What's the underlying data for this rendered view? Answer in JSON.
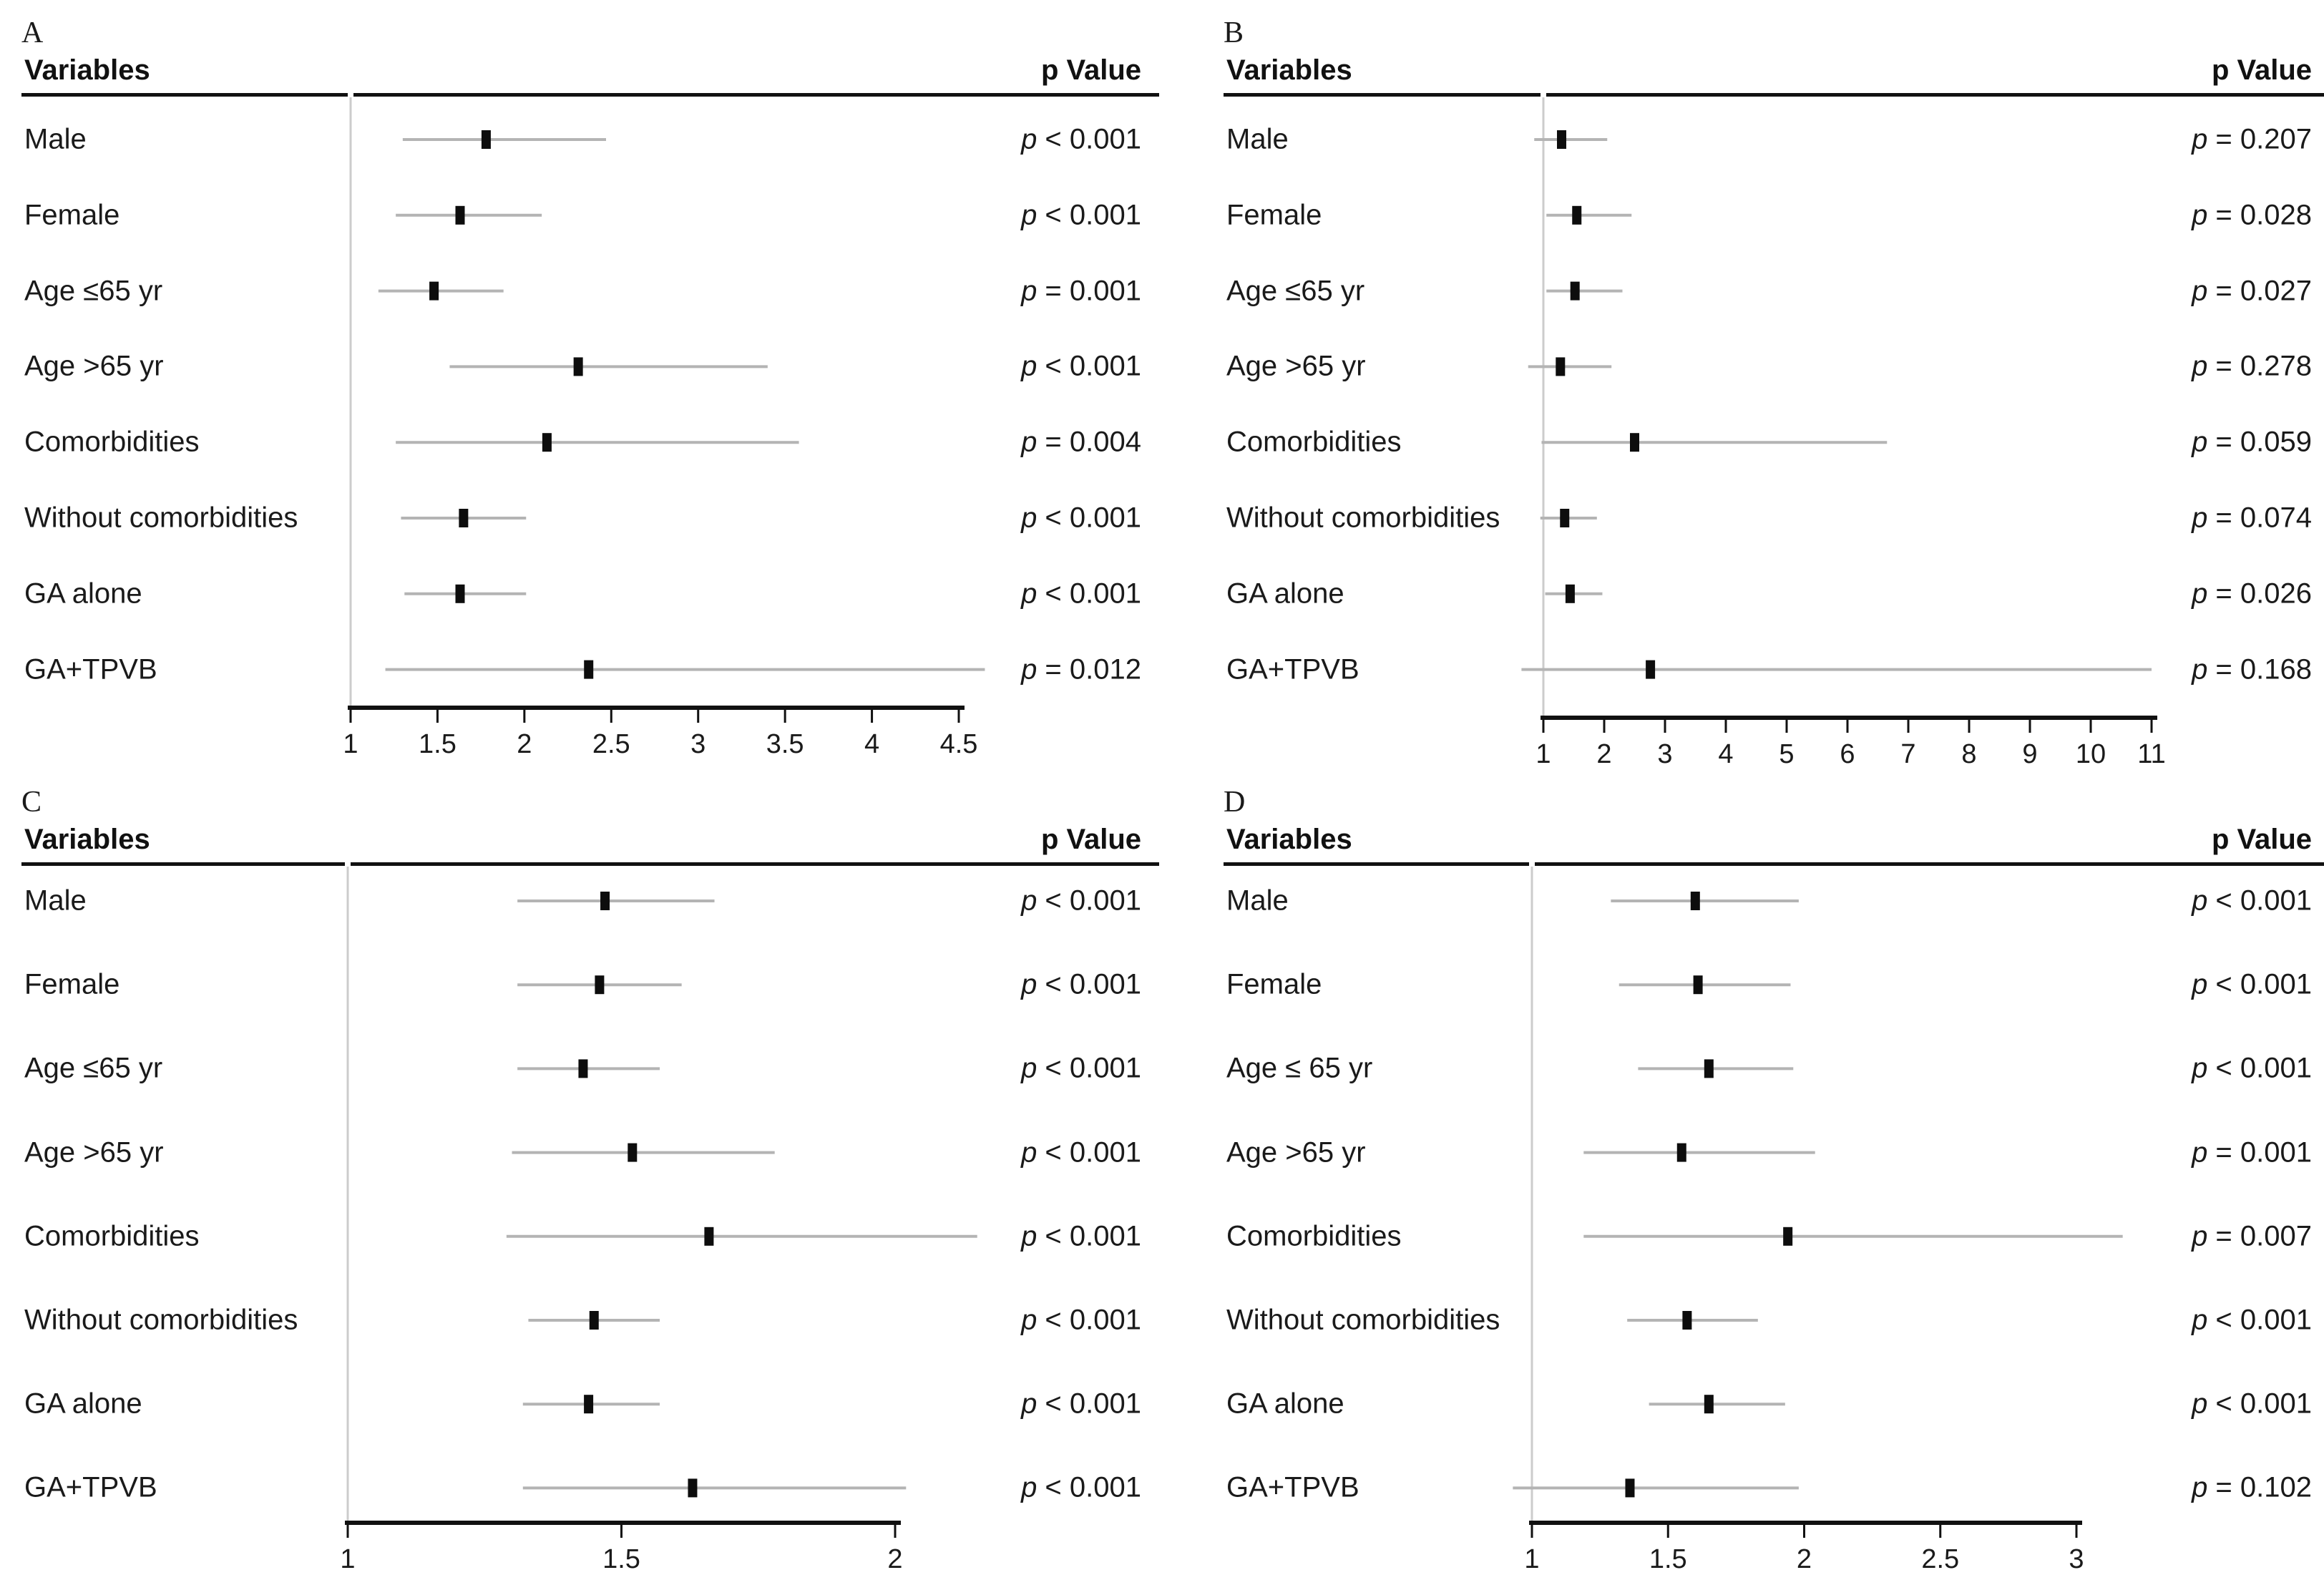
{
  "figure_type": "four_panel_forest_plot",
  "colors": {
    "background": "#ffffff",
    "text": "#1a1a1a",
    "ci_line": "#b4b4b4",
    "marker": "#0d0d0d",
    "reference_line": "#cccccc",
    "axis_line": "#111111",
    "header_rule": "#111111"
  },
  "chart_data": [
    {
      "type": "scatter",
      "variant": "forest_plot",
      "panel_label": "A",
      "columns": {
        "left": "Variables",
        "right": "p Value"
      },
      "x_axis": {
        "range": [
          1,
          4.5
        ],
        "ticks": [
          1,
          1.5,
          2,
          2.5,
          3,
          3.5,
          4,
          4.5
        ],
        "tick_labels": [
          "1",
          "1.5",
          "2",
          "2.5",
          "3",
          "3.5",
          "4",
          "4.5"
        ],
        "grid": false
      },
      "rows": [
        {
          "label": "Male",
          "estimate": 1.78,
          "ci_low": 1.3,
          "ci_high": 2.47,
          "p_value": "p < 0.001"
        },
        {
          "label": "Female",
          "estimate": 1.63,
          "ci_low": 1.26,
          "ci_high": 2.1,
          "p_value": "p < 0.001"
        },
        {
          "label": "Age ≤65 yr",
          "estimate": 1.48,
          "ci_low": 1.16,
          "ci_high": 1.88,
          "p_value": "p = 0.001"
        },
        {
          "label": "Age >65 yr",
          "estimate": 2.31,
          "ci_low": 1.57,
          "ci_high": 3.4,
          "p_value": "p < 0.001"
        },
        {
          "label": "Comorbidities",
          "estimate": 2.13,
          "ci_low": 1.26,
          "ci_high": 3.58,
          "p_value": "p = 0.004"
        },
        {
          "label": "Without comorbidities",
          "estimate": 1.65,
          "ci_low": 1.29,
          "ci_high": 2.01,
          "p_value": "p < 0.001"
        },
        {
          "label": "GA alone",
          "estimate": 1.63,
          "ci_low": 1.31,
          "ci_high": 2.01,
          "p_value": "p < 0.001"
        },
        {
          "label": "GA+TPVB",
          "estimate": 2.37,
          "ci_low": 1.2,
          "ci_high": 4.65,
          "p_value": "p = 0.012"
        }
      ]
    },
    {
      "type": "scatter",
      "variant": "forest_plot",
      "panel_label": "B",
      "columns": {
        "left": "Variables",
        "right": "p Value"
      },
      "x_axis": {
        "range": [
          1,
          11
        ],
        "ticks": [
          1,
          2,
          3,
          4,
          5,
          6,
          7,
          8,
          9,
          10,
          11
        ],
        "tick_labels": [
          "1",
          "2",
          "3",
          "4",
          "5",
          "6",
          "7",
          "8",
          "9",
          "10",
          "11"
        ],
        "grid": false
      },
      "rows": [
        {
          "label": "Male",
          "estimate": 1.3,
          "ci_low": 0.85,
          "ci_high": 2.05,
          "p_value": "p = 0.207"
        },
        {
          "label": "Female",
          "estimate": 1.55,
          "ci_low": 1.05,
          "ci_high": 2.45,
          "p_value": "p = 0.028"
        },
        {
          "label": "Age ≤65 yr",
          "estimate": 1.52,
          "ci_low": 1.05,
          "ci_high": 2.3,
          "p_value": "p = 0.027"
        },
        {
          "label": "Age >65 yr",
          "estimate": 1.28,
          "ci_low": 0.75,
          "ci_high": 2.12,
          "p_value": "p = 0.278"
        },
        {
          "label": "Comorbidities",
          "estimate": 2.5,
          "ci_low": 0.97,
          "ci_high": 6.65,
          "p_value": "p = 0.059"
        },
        {
          "label": "Without comorbidities",
          "estimate": 1.35,
          "ci_low": 0.95,
          "ci_high": 1.88,
          "p_value": "p = 0.074"
        },
        {
          "label": "GA alone",
          "estimate": 1.44,
          "ci_low": 1.03,
          "ci_high": 1.97,
          "p_value": "p = 0.026"
        },
        {
          "label": "GA+TPVB",
          "estimate": 2.76,
          "ci_low": 0.64,
          "ci_high": 11.0,
          "p_value": "p = 0.168"
        }
      ]
    },
    {
      "type": "scatter",
      "variant": "forest_plot",
      "panel_label": "C",
      "columns": {
        "left": "Variables",
        "right": "p Value"
      },
      "x_axis": {
        "range": [
          1,
          2
        ],
        "ticks": [
          1,
          1.5,
          2
        ],
        "tick_labels": [
          "1",
          "1.5",
          "2"
        ],
        "grid": false
      },
      "rows": [
        {
          "label": "Male",
          "estimate": 1.47,
          "ci_low": 1.31,
          "ci_high": 1.67,
          "p_value": "p < 0.001"
        },
        {
          "label": "Female",
          "estimate": 1.46,
          "ci_low": 1.31,
          "ci_high": 1.61,
          "p_value": "p < 0.001"
        },
        {
          "label": "Age ≤65 yr",
          "estimate": 1.43,
          "ci_low": 1.31,
          "ci_high": 1.57,
          "p_value": "p < 0.001"
        },
        {
          "label": "Age >65 yr",
          "estimate": 1.52,
          "ci_low": 1.3,
          "ci_high": 1.78,
          "p_value": "p < 0.001"
        },
        {
          "label": "Comorbidities",
          "estimate": 1.66,
          "ci_low": 1.29,
          "ci_high": 2.15,
          "p_value": "p < 0.001"
        },
        {
          "label": "Without comorbidities",
          "estimate": 1.45,
          "ci_low": 1.33,
          "ci_high": 1.57,
          "p_value": "p < 0.001"
        },
        {
          "label": "GA alone",
          "estimate": 1.44,
          "ci_low": 1.32,
          "ci_high": 1.57,
          "p_value": "p < 0.001"
        },
        {
          "label": "GA+TPVB",
          "estimate": 1.63,
          "ci_low": 1.32,
          "ci_high": 2.02,
          "p_value": "p < 0.001"
        }
      ]
    },
    {
      "type": "scatter",
      "variant": "forest_plot",
      "panel_label": "D",
      "columns": {
        "left": "Variables",
        "right": "p Value"
      },
      "x_axis": {
        "range": [
          1,
          3
        ],
        "ticks": [
          1,
          1.5,
          2,
          2.5,
          3
        ],
        "tick_labels": [
          "1",
          "1.5",
          "2",
          "2.5",
          "3"
        ],
        "grid": false
      },
      "rows": [
        {
          "label": "Male",
          "estimate": 1.6,
          "ci_low": 1.29,
          "ci_high": 1.98,
          "p_value": "p < 0.001"
        },
        {
          "label": "Female",
          "estimate": 1.61,
          "ci_low": 1.32,
          "ci_high": 1.95,
          "p_value": "p < 0.001"
        },
        {
          "label": "Age ≤ 65 yr",
          "estimate": 1.65,
          "ci_low": 1.39,
          "ci_high": 1.96,
          "p_value": "p < 0.001"
        },
        {
          "label": "Age >65 yr",
          "estimate": 1.55,
          "ci_low": 1.19,
          "ci_high": 2.04,
          "p_value": "p = 0.001"
        },
        {
          "label": "Comorbidities",
          "estimate": 1.94,
          "ci_low": 1.19,
          "ci_high": 3.17,
          "p_value": "p = 0.007"
        },
        {
          "label": "Without comorbidities",
          "estimate": 1.57,
          "ci_low": 1.35,
          "ci_high": 1.83,
          "p_value": "p < 0.001"
        },
        {
          "label": "GA alone",
          "estimate": 1.65,
          "ci_low": 1.43,
          "ci_high": 1.93,
          "p_value": "p < 0.001"
        },
        {
          "label": "GA+TPVB",
          "estimate": 1.36,
          "ci_low": 0.93,
          "ci_high": 1.98,
          "p_value": "p = 0.102"
        }
      ]
    }
  ]
}
